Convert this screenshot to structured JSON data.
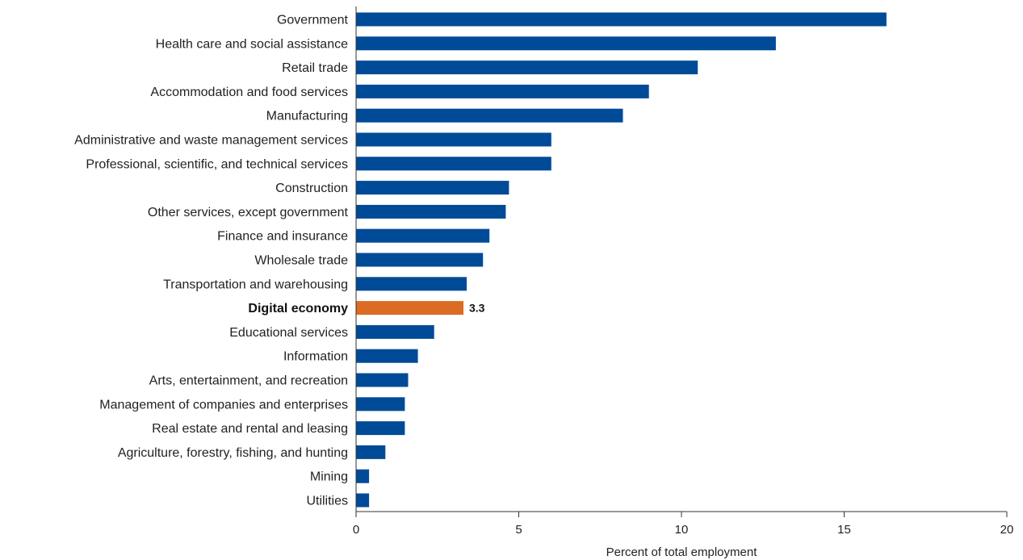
{
  "colors": {
    "bar": "#004b97",
    "highlight_bar": "#dc6b23",
    "axis": "#333333"
  },
  "chart_data": {
    "type": "bar",
    "orientation": "horizontal",
    "title": "",
    "xlabel": "Percent of total employment",
    "ylabel": "",
    "xlim": [
      0,
      20
    ],
    "xticks": [
      0,
      5,
      10,
      15,
      20
    ],
    "grid": false,
    "legend": "none",
    "categories": [
      "Government",
      "Health care and social assistance",
      "Retail trade",
      "Accommodation and food services",
      "Manufacturing",
      "Administrative and waste management services",
      "Professional, scientific, and technical services",
      "Construction",
      "Other services, except government",
      "Finance and insurance",
      "Wholesale trade",
      "Transportation and warehousing",
      "Digital economy",
      "Educational services",
      "Information",
      "Arts, entertainment, and recreation",
      "Management of companies and enterprises",
      "Real estate and rental and leasing",
      "Agriculture, forestry, fishing, and hunting",
      "Mining",
      "Utilities"
    ],
    "values": [
      16.3,
      12.9,
      10.5,
      9.0,
      8.2,
      6.0,
      6.0,
      4.7,
      4.6,
      4.1,
      3.9,
      3.4,
      3.3,
      2.4,
      1.9,
      1.6,
      1.5,
      1.5,
      0.9,
      0.4,
      0.4
    ],
    "highlight": "Digital economy",
    "data_labels": [
      {
        "category": "Digital economy",
        "text": "3.3"
      }
    ]
  }
}
